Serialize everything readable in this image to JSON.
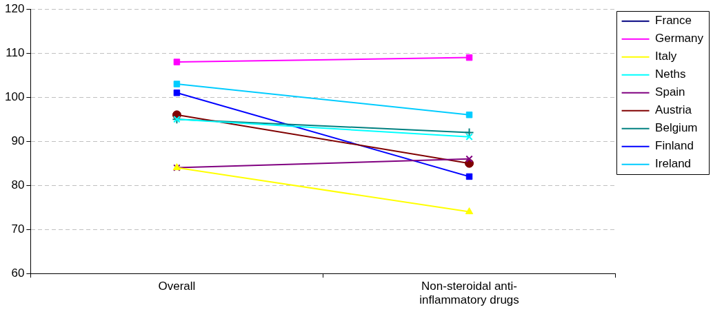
{
  "chart_data": {
    "type": "line",
    "categories": [
      "Overall",
      "Non-steroidal anti-inflammatory drugs"
    ],
    "series": [
      {
        "name": "France",
        "color": "#000080",
        "marker": "diamond",
        "values": [
          null,
          null
        ]
      },
      {
        "name": "Germany",
        "color": "#ff00ff",
        "marker": "square",
        "values": [
          108,
          109
        ]
      },
      {
        "name": "Italy",
        "color": "#ffff00",
        "marker": "triangle",
        "values": [
          84,
          74
        ]
      },
      {
        "name": "Neths",
        "color": "#00ffff",
        "marker": "cross",
        "values": [
          95,
          91
        ]
      },
      {
        "name": "Spain",
        "color": "#800080",
        "marker": "cross",
        "values": [
          84,
          86
        ]
      },
      {
        "name": "Austria",
        "color": "#800000",
        "marker": "circle",
        "values": [
          96,
          85
        ]
      },
      {
        "name": "Belgium",
        "color": "#008080",
        "marker": "plus",
        "values": [
          95,
          92
        ]
      },
      {
        "name": "Finland",
        "color": "#0000ff",
        "marker": "square",
        "values": [
          101,
          82
        ]
      },
      {
        "name": "Ireland",
        "color": "#00ccff",
        "marker": "square",
        "values": [
          103,
          96
        ]
      }
    ],
    "ylim": [
      60,
      120
    ],
    "yticks": [
      60,
      70,
      80,
      90,
      100,
      110,
      120
    ],
    "grid": "y",
    "legend": "right",
    "line_style": "solid"
  }
}
